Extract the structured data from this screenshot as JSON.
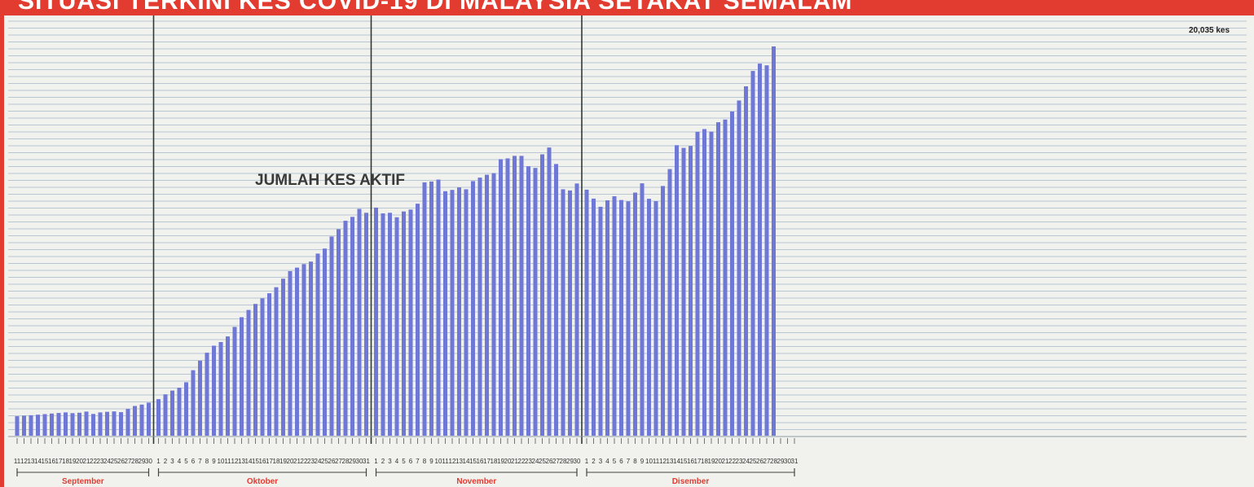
{
  "banner": {
    "title": "SITUASI TERKINI KES COVID-19 DI MALAYSIA SETAKAT SEMALAM"
  },
  "chart_data": {
    "type": "bar",
    "title": "JUMLAH KES AKTIF",
    "annotation": "20,035 kes",
    "ylim": [
      0,
      21500
    ],
    "grid": true,
    "colors": {
      "bar": "#7078d6",
      "grid": "#b9c6d4",
      "accent": "#e23b30",
      "divider": "#2f3b32"
    },
    "months": [
      {
        "name": "September",
        "days": [
          "11",
          "12",
          "13",
          "14",
          "15",
          "16",
          "17",
          "18",
          "19",
          "20",
          "21",
          "22",
          "23",
          "24",
          "25",
          "26",
          "27",
          "28",
          "29",
          "30"
        ]
      },
      {
        "name": "Oktober",
        "days": [
          "1",
          "2",
          "3",
          "4",
          "5",
          "6",
          "7",
          "8",
          "9",
          "10",
          "11",
          "12",
          "13",
          "14",
          "15",
          "16",
          "17",
          "18",
          "19",
          "20",
          "21",
          "22",
          "23",
          "24",
          "25",
          "26",
          "27",
          "28",
          "29",
          "30",
          "31"
        ]
      },
      {
        "name": "November",
        "days": [
          "1",
          "2",
          "3",
          "4",
          "5",
          "6",
          "7",
          "8",
          "9",
          "10",
          "11",
          "12",
          "13",
          "14",
          "15",
          "16",
          "17",
          "18",
          "19",
          "20",
          "21",
          "22",
          "23",
          "24",
          "25",
          "26",
          "27",
          "28",
          "29",
          "30"
        ]
      },
      {
        "name": "Disember",
        "days": [
          "1",
          "2",
          "3",
          "4",
          "5",
          "6",
          "7",
          "8",
          "9",
          "10",
          "11",
          "12",
          "13",
          "14",
          "15",
          "16",
          "17",
          "18",
          "19",
          "20",
          "21",
          "22",
          "23",
          "24",
          "25",
          "26",
          "27",
          "28",
          "29",
          "30",
          "31"
        ]
      }
    ],
    "values": [
      1000,
      1030,
      1050,
      1080,
      1110,
      1140,
      1170,
      1200,
      1160,
      1180,
      1240,
      1120,
      1200,
      1230,
      1250,
      1210,
      1380,
      1530,
      1600,
      1700,
      1880,
      2130,
      2320,
      2470,
      2750,
      3370,
      3860,
      4270,
      4630,
      4820,
      5110,
      5600,
      6100,
      6470,
      6780,
      7070,
      7330,
      7640,
      8080,
      8470,
      8650,
      8830,
      8960,
      9370,
      9630,
      10250,
      10630,
      11060,
      11260,
      11670,
      11470,
      11740,
      11440,
      11470,
      11240,
      11540,
      11640,
      11940,
      13040,
      13080,
      13180,
      12580,
      12650,
      12780,
      12680,
      13100,
      13280,
      13430,
      13510,
      14230,
      14270,
      14400,
      14400,
      13870,
      13780,
      14480,
      14830,
      13980,
      12680,
      12620,
      12980,
      12660,
      12200,
      11780,
      12110,
      12320,
      12130,
      12060,
      12510,
      12990,
      12190,
      12070,
      12850,
      13720,
      14950,
      14810,
      14910,
      15640,
      15780,
      15650,
      16130,
      16270,
      16680,
      17250,
      17980,
      18770,
      19150,
      19060,
      20035
    ]
  }
}
